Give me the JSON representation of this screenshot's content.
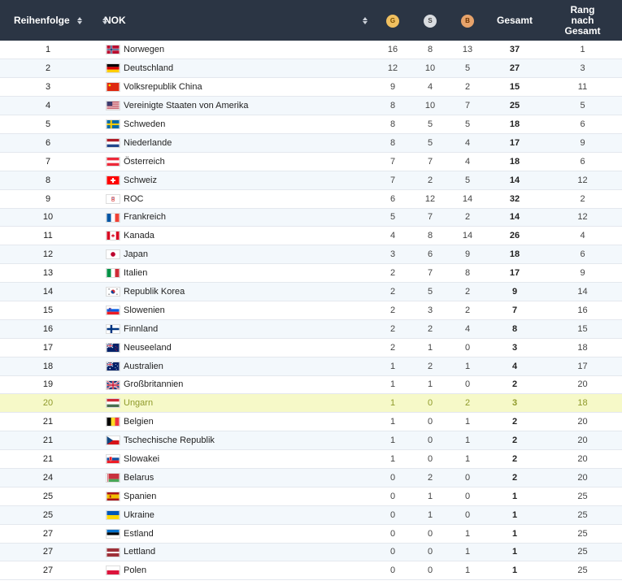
{
  "header": {
    "rank": "Reihenfolge",
    "nok": "NOK",
    "gold": "G",
    "silver": "S",
    "bronze": "B",
    "total": "Gesamt",
    "rank_total_1": "Rang",
    "rank_total_2": "nach",
    "rank_total_3": "Gesamt"
  },
  "rows": [
    {
      "rank": "1",
      "country": "Norwegen",
      "g": "16",
      "s": "8",
      "b": "13",
      "total": "37",
      "rtot": "1",
      "flag": "norway-flag"
    },
    {
      "rank": "2",
      "country": "Deutschland",
      "g": "12",
      "s": "10",
      "b": "5",
      "total": "27",
      "rtot": "3",
      "flag": "germany-flag"
    },
    {
      "rank": "3",
      "country": "Volksrepublik China",
      "g": "9",
      "s": "4",
      "b": "2",
      "total": "15",
      "rtot": "11",
      "flag": "china-flag"
    },
    {
      "rank": "4",
      "country": "Vereinigte Staaten von Amerika",
      "g": "8",
      "s": "10",
      "b": "7",
      "total": "25",
      "rtot": "5",
      "flag": "usa-flag"
    },
    {
      "rank": "5",
      "country": "Schweden",
      "g": "8",
      "s": "5",
      "b": "5",
      "total": "18",
      "rtot": "6",
      "flag": "sweden-flag"
    },
    {
      "rank": "6",
      "country": "Niederlande",
      "g": "8",
      "s": "5",
      "b": "4",
      "total": "17",
      "rtot": "9",
      "flag": "netherlands-flag"
    },
    {
      "rank": "7",
      "country": "Österreich",
      "g": "7",
      "s": "7",
      "b": "4",
      "total": "18",
      "rtot": "6",
      "flag": "austria-flag"
    },
    {
      "rank": "8",
      "country": "Schweiz",
      "g": "7",
      "s": "2",
      "b": "5",
      "total": "14",
      "rtot": "12",
      "flag": "switzerland-flag"
    },
    {
      "rank": "9",
      "country": "ROC",
      "g": "6",
      "s": "12",
      "b": "14",
      "total": "32",
      "rtot": "2",
      "flag": "roc-flag"
    },
    {
      "rank": "10",
      "country": "Frankreich",
      "g": "5",
      "s": "7",
      "b": "2",
      "total": "14",
      "rtot": "12",
      "flag": "france-flag"
    },
    {
      "rank": "11",
      "country": "Kanada",
      "g": "4",
      "s": "8",
      "b": "14",
      "total": "26",
      "rtot": "4",
      "flag": "canada-flag"
    },
    {
      "rank": "12",
      "country": "Japan",
      "g": "3",
      "s": "6",
      "b": "9",
      "total": "18",
      "rtot": "6",
      "flag": "japan-flag"
    },
    {
      "rank": "13",
      "country": "Italien",
      "g": "2",
      "s": "7",
      "b": "8",
      "total": "17",
      "rtot": "9",
      "flag": "italy-flag"
    },
    {
      "rank": "14",
      "country": "Republik Korea",
      "g": "2",
      "s": "5",
      "b": "2",
      "total": "9",
      "rtot": "14",
      "flag": "korea-flag"
    },
    {
      "rank": "15",
      "country": "Slowenien",
      "g": "2",
      "s": "3",
      "b": "2",
      "total": "7",
      "rtot": "16",
      "flag": "slovenia-flag"
    },
    {
      "rank": "16",
      "country": "Finnland",
      "g": "2",
      "s": "2",
      "b": "4",
      "total": "8",
      "rtot": "15",
      "flag": "finland-flag"
    },
    {
      "rank": "17",
      "country": "Neuseeland",
      "g": "2",
      "s": "1",
      "b": "0",
      "total": "3",
      "rtot": "18",
      "flag": "newzealand-flag"
    },
    {
      "rank": "18",
      "country": "Australien",
      "g": "1",
      "s": "2",
      "b": "1",
      "total": "4",
      "rtot": "17",
      "flag": "australia-flag"
    },
    {
      "rank": "19",
      "country": "Großbritannien",
      "g": "1",
      "s": "1",
      "b": "0",
      "total": "2",
      "rtot": "20",
      "flag": "uk-flag"
    },
    {
      "rank": "20",
      "country": "Ungarn",
      "g": "1",
      "s": "0",
      "b": "2",
      "total": "3",
      "rtot": "18",
      "flag": "hungary-flag",
      "highlight": true
    },
    {
      "rank": "21",
      "country": "Belgien",
      "g": "1",
      "s": "0",
      "b": "1",
      "total": "2",
      "rtot": "20",
      "flag": "belgium-flag"
    },
    {
      "rank": "21",
      "country": "Tschechische Republik",
      "g": "1",
      "s": "0",
      "b": "1",
      "total": "2",
      "rtot": "20",
      "flag": "czech-flag"
    },
    {
      "rank": "21",
      "country": "Slowakei",
      "g": "1",
      "s": "0",
      "b": "1",
      "total": "2",
      "rtot": "20",
      "flag": "slovakia-flag"
    },
    {
      "rank": "24",
      "country": "Belarus",
      "g": "0",
      "s": "2",
      "b": "0",
      "total": "2",
      "rtot": "20",
      "flag": "belarus-flag"
    },
    {
      "rank": "25",
      "country": "Spanien",
      "g": "0",
      "s": "1",
      "b": "0",
      "total": "1",
      "rtot": "25",
      "flag": "spain-flag"
    },
    {
      "rank": "25",
      "country": "Ukraine",
      "g": "0",
      "s": "1",
      "b": "0",
      "total": "1",
      "rtot": "25",
      "flag": "ukraine-flag"
    },
    {
      "rank": "27",
      "country": "Estland",
      "g": "0",
      "s": "0",
      "b": "1",
      "total": "1",
      "rtot": "25",
      "flag": "estonia-flag"
    },
    {
      "rank": "27",
      "country": "Lettland",
      "g": "0",
      "s": "0",
      "b": "1",
      "total": "1",
      "rtot": "25",
      "flag": "latvia-flag"
    },
    {
      "rank": "27",
      "country": "Polen",
      "g": "0",
      "s": "0",
      "b": "1",
      "total": "1",
      "rtot": "25",
      "flag": "poland-flag"
    }
  ]
}
